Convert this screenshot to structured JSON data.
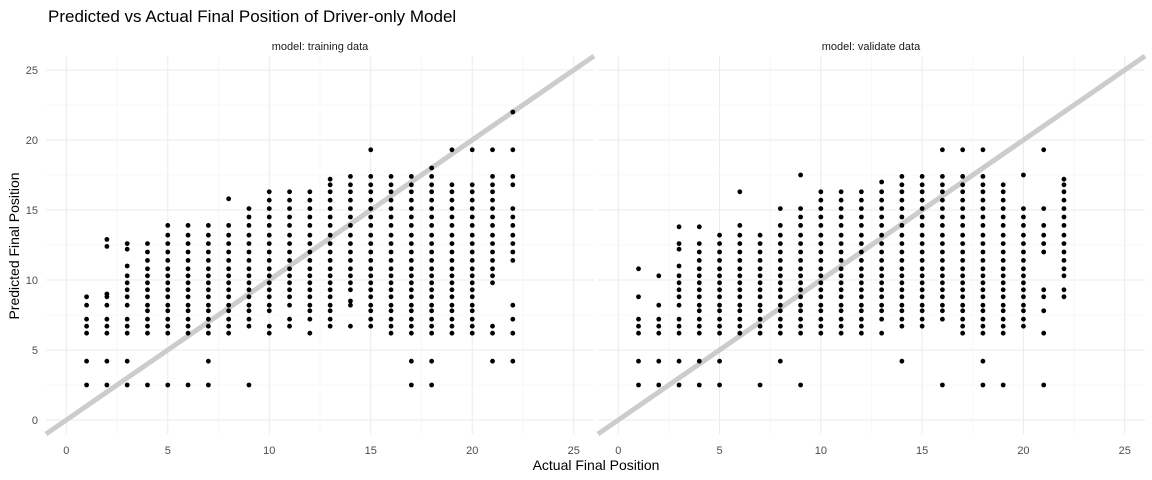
{
  "chart_data": {
    "type": "scatter",
    "title": "Predicted vs Actual Final Position of Driver-only Model",
    "xlabel": "Actual Final Position",
    "ylabel": "Predicted Final Position",
    "xlim": [
      -1,
      26
    ],
    "ylim": [
      -1,
      26
    ],
    "x_ticks": [
      0,
      5,
      10,
      15,
      20,
      25
    ],
    "y_ticks": [
      0,
      5,
      10,
      15,
      20,
      25
    ],
    "grid": true,
    "reference_line": {
      "slope": 1,
      "intercept": 0,
      "color": "#cccccc"
    },
    "point_color": "#000000",
    "panels": [
      {
        "label": "model: training data",
        "columns": [
          {
            "x": 1,
            "y": [
              2.5,
              4.2,
              6.2,
              6.7,
              7.2,
              8.2,
              8.8
            ]
          },
          {
            "x": 2,
            "y": [
              2.5,
              4.2,
              6.2,
              6.7,
              7.2,
              8.2,
              8.8,
              9.0,
              12.4,
              12.9
            ]
          },
          {
            "x": 3,
            "y": [
              2.5,
              4.2,
              6.2,
              6.7,
              7.2,
              8.2,
              8.8,
              9.3,
              9.8,
              10.3,
              11.0,
              12.2,
              12.6
            ]
          },
          {
            "x": 4,
            "y": [
              2.5,
              6.2,
              6.7,
              7.2,
              7.8,
              8.2,
              8.8,
              9.3,
              9.8,
              10.3,
              10.8,
              11.4,
              12.0,
              12.6
            ]
          },
          {
            "x": 5,
            "y": [
              2.5,
              6.2,
              6.7,
              7.2,
              7.8,
              8.2,
              8.8,
              9.3,
              9.8,
              10.3,
              10.8,
              11.4,
              12.0,
              12.6,
              13.2,
              13.9
            ]
          },
          {
            "x": 6,
            "y": [
              2.5,
              6.2,
              6.7,
              7.2,
              7.8,
              8.2,
              8.8,
              9.3,
              9.8,
              10.3,
              10.8,
              11.4,
              12.0,
              12.6,
              13.2,
              13.9
            ]
          },
          {
            "x": 7,
            "y": [
              2.5,
              4.2,
              6.2,
              6.7,
              7.2,
              7.8,
              8.2,
              8.8,
              9.3,
              9.8,
              10.3,
              10.8,
              11.4,
              12.0,
              12.6,
              13.2,
              13.9
            ]
          },
          {
            "x": 8,
            "y": [
              6.2,
              6.7,
              7.2,
              7.8,
              8.2,
              8.8,
              9.3,
              9.8,
              10.3,
              10.8,
              11.4,
              12.0,
              12.6,
              13.2,
              13.9,
              15.8
            ]
          },
          {
            "x": 9,
            "y": [
              2.5,
              6.7,
              7.2,
              7.8,
              8.2,
              8.8,
              9.3,
              9.8,
              10.3,
              10.8,
              11.4,
              12.0,
              12.6,
              13.2,
              13.9,
              14.5,
              15.1
            ]
          },
          {
            "x": 10,
            "y": [
              6.2,
              6.7,
              7.8,
              8.2,
              8.8,
              9.3,
              9.8,
              10.3,
              10.8,
              11.4,
              12.0,
              12.6,
              13.2,
              13.9,
              14.5,
              15.1,
              15.7,
              16.3
            ]
          },
          {
            "x": 11,
            "y": [
              6.7,
              7.2,
              8.2,
              8.8,
              9.3,
              9.8,
              10.3,
              10.8,
              11.4,
              12.0,
              12.6,
              13.2,
              13.9,
              14.5,
              15.1,
              15.7,
              16.3
            ]
          },
          {
            "x": 12,
            "y": [
              6.2,
              7.2,
              7.8,
              8.2,
              8.8,
              9.3,
              9.8,
              10.3,
              10.8,
              11.4,
              12.0,
              12.6,
              13.2,
              13.9,
              14.5,
              15.1,
              15.7,
              16.3
            ]
          },
          {
            "x": 13,
            "y": [
              6.7,
              7.2,
              7.8,
              8.2,
              8.8,
              9.3,
              9.8,
              10.3,
              10.8,
              11.4,
              12.0,
              12.6,
              13.2,
              13.9,
              14.5,
              15.1,
              15.7,
              16.3,
              16.8,
              17.2
            ]
          },
          {
            "x": 14,
            "y": [
              6.7,
              8.2,
              8.5,
              9.3,
              9.8,
              10.3,
              10.8,
              11.4,
              12.0,
              12.6,
              13.2,
              13.9,
              14.5,
              15.1,
              15.7,
              16.3,
              16.8,
              17.4
            ]
          },
          {
            "x": 15,
            "y": [
              6.7,
              7.2,
              7.8,
              8.2,
              8.8,
              9.3,
              9.8,
              10.3,
              10.8,
              11.4,
              12.0,
              12.6,
              13.2,
              13.9,
              14.5,
              15.1,
              15.7,
              16.3,
              16.8,
              17.4,
              19.3
            ]
          },
          {
            "x": 16,
            "y": [
              6.2,
              6.7,
              7.2,
              7.8,
              8.2,
              8.8,
              9.3,
              9.8,
              10.3,
              10.8,
              11.4,
              12.0,
              12.6,
              13.2,
              13.9,
              14.5,
              15.1,
              15.7,
              16.3,
              16.8,
              17.4
            ]
          },
          {
            "x": 17,
            "y": [
              2.5,
              4.2,
              6.2,
              6.7,
              7.2,
              7.8,
              8.2,
              8.8,
              9.3,
              9.8,
              10.3,
              10.8,
              11.4,
              12.0,
              12.6,
              13.2,
              13.9,
              14.5,
              15.1,
              15.7,
              16.3,
              16.8,
              17.4
            ]
          },
          {
            "x": 18,
            "y": [
              2.5,
              4.2,
              6.2,
              6.7,
              7.2,
              7.8,
              8.2,
              8.8,
              9.3,
              9.8,
              10.3,
              10.8,
              11.4,
              12.0,
              12.6,
              13.2,
              13.9,
              14.5,
              15.1,
              15.7,
              16.3,
              16.8,
              17.4,
              18.0
            ]
          },
          {
            "x": 19,
            "y": [
              6.2,
              6.7,
              7.2,
              7.8,
              8.2,
              8.8,
              9.3,
              9.8,
              10.3,
              10.8,
              11.4,
              12.0,
              12.6,
              13.2,
              13.9,
              14.5,
              15.1,
              15.7,
              16.3,
              16.8,
              19.3
            ]
          },
          {
            "x": 20,
            "y": [
              6.2,
              6.7,
              7.2,
              7.8,
              8.2,
              8.8,
              9.3,
              9.8,
              10.3,
              10.8,
              11.4,
              12.0,
              12.6,
              13.2,
              13.9,
              14.5,
              15.1,
              15.7,
              16.3,
              16.8,
              19.3
            ]
          },
          {
            "x": 21,
            "y": [
              4.2,
              6.2,
              6.7,
              9.8,
              10.3,
              10.8,
              11.4,
              12.0,
              12.6,
              13.2,
              13.9,
              14.5,
              15.1,
              15.7,
              16.3,
              16.8,
              17.4,
              19.3
            ]
          },
          {
            "x": 22,
            "y": [
              4.2,
              6.2,
              7.2,
              8.2,
              11.4,
              12.0,
              12.6,
              13.2,
              13.9,
              14.5,
              15.1,
              16.8,
              17.4,
              19.3,
              22.0
            ]
          }
        ]
      },
      {
        "label": "model: validate data",
        "columns": [
          {
            "x": 1,
            "y": [
              2.5,
              4.2,
              6.2,
              6.7,
              7.2,
              8.8,
              10.8
            ]
          },
          {
            "x": 2,
            "y": [
              2.5,
              4.2,
              6.2,
              6.7,
              7.2,
              8.2,
              10.3
            ]
          },
          {
            "x": 3,
            "y": [
              2.5,
              4.2,
              6.2,
              6.7,
              7.2,
              8.2,
              8.8,
              9.3,
              9.8,
              10.3,
              11.0,
              12.2,
              12.6,
              13.8
            ]
          },
          {
            "x": 4,
            "y": [
              2.5,
              4.2,
              6.2,
              6.7,
              7.2,
              7.8,
              8.2,
              8.8,
              9.3,
              9.8,
              10.3,
              10.8,
              11.4,
              12.0,
              12.6,
              13.8
            ]
          },
          {
            "x": 5,
            "y": [
              2.5,
              4.2,
              6.2,
              6.7,
              7.2,
              7.8,
              8.2,
              8.8,
              9.3,
              9.8,
              10.3,
              10.8,
              11.4,
              12.0,
              12.6,
              13.2
            ]
          },
          {
            "x": 6,
            "y": [
              6.2,
              6.7,
              7.2,
              7.8,
              8.2,
              8.8,
              9.3,
              9.8,
              10.3,
              10.8,
              11.4,
              12.0,
              12.6,
              13.2,
              13.9,
              16.3
            ]
          },
          {
            "x": 7,
            "y": [
              2.5,
              6.2,
              6.7,
              7.2,
              7.8,
              8.2,
              8.8,
              9.3,
              9.8,
              10.3,
              10.8,
              11.4,
              12.0,
              12.6,
              13.2
            ]
          },
          {
            "x": 8,
            "y": [
              4.2,
              6.2,
              6.7,
              7.2,
              7.8,
              8.2,
              8.8,
              9.3,
              9.8,
              10.3,
              10.8,
              11.4,
              12.0,
              12.6,
              13.2,
              13.9,
              15.1
            ]
          },
          {
            "x": 9,
            "y": [
              2.5,
              6.2,
              6.7,
              7.2,
              7.8,
              8.2,
              8.8,
              9.3,
              9.8,
              10.3,
              10.8,
              11.4,
              12.0,
              12.6,
              13.2,
              13.9,
              14.5,
              15.1,
              17.5
            ]
          },
          {
            "x": 10,
            "y": [
              6.2,
              6.7,
              7.2,
              7.8,
              8.2,
              8.8,
              9.3,
              9.8,
              10.3,
              10.8,
              11.4,
              12.0,
              12.6,
              13.2,
              13.9,
              14.5,
              15.1,
              15.7,
              16.3
            ]
          },
          {
            "x": 11,
            "y": [
              6.2,
              6.7,
              7.2,
              7.8,
              8.2,
              8.8,
              9.3,
              9.8,
              10.3,
              10.8,
              11.4,
              12.0,
              12.6,
              13.2,
              13.9,
              14.5,
              15.1,
              15.7,
              16.3
            ]
          },
          {
            "x": 12,
            "y": [
              6.2,
              6.7,
              7.2,
              7.8,
              8.2,
              8.8,
              9.3,
              9.8,
              10.3,
              10.8,
              11.4,
              12.0,
              12.6,
              13.2,
              13.9,
              14.5,
              15.1,
              15.7,
              16.3
            ]
          },
          {
            "x": 13,
            "y": [
              6.2,
              7.2,
              7.8,
              8.2,
              8.8,
              9.3,
              9.8,
              10.3,
              10.8,
              11.4,
              12.0,
              12.6,
              13.2,
              13.9,
              14.5,
              15.1,
              15.7,
              16.3,
              17.0
            ]
          },
          {
            "x": 14,
            "y": [
              4.2,
              6.7,
              7.2,
              7.8,
              8.2,
              8.8,
              9.3,
              9.8,
              10.3,
              10.8,
              11.4,
              12.0,
              12.6,
              13.2,
              13.9,
              14.5,
              15.1,
              15.7,
              16.3,
              16.8,
              17.4
            ]
          },
          {
            "x": 15,
            "y": [
              6.7,
              7.2,
              7.8,
              8.2,
              8.8,
              9.3,
              9.8,
              10.3,
              10.8,
              11.4,
              12.0,
              12.6,
              13.2,
              13.9,
              14.5,
              15.1,
              15.7,
              16.3,
              16.8,
              17.4
            ]
          },
          {
            "x": 16,
            "y": [
              2.5,
              7.2,
              7.8,
              8.2,
              8.8,
              9.3,
              9.8,
              10.3,
              10.8,
              11.4,
              12.0,
              12.6,
              13.2,
              13.9,
              14.5,
              15.1,
              15.7,
              16.3,
              16.8,
              17.4,
              19.3
            ]
          },
          {
            "x": 17,
            "y": [
              6.2,
              6.7,
              7.2,
              7.8,
              8.2,
              8.8,
              9.3,
              9.8,
              10.3,
              10.8,
              11.4,
              12.0,
              12.6,
              13.2,
              13.9,
              14.5,
              15.1,
              15.7,
              16.3,
              16.8,
              17.4,
              19.3
            ]
          },
          {
            "x": 18,
            "y": [
              2.5,
              4.2,
              6.2,
              6.7,
              7.2,
              7.8,
              8.2,
              8.8,
              9.3,
              9.8,
              10.3,
              10.8,
              11.4,
              12.0,
              12.6,
              13.2,
              13.9,
              14.5,
              15.1,
              15.7,
              16.3,
              16.8,
              17.4,
              19.3
            ]
          },
          {
            "x": 19,
            "y": [
              2.5,
              6.2,
              6.7,
              7.2,
              7.8,
              8.2,
              8.8,
              9.3,
              9.8,
              10.3,
              10.8,
              11.4,
              12.0,
              12.6,
              13.2,
              13.9,
              14.5,
              15.1,
              15.7,
              16.3,
              16.8
            ]
          },
          {
            "x": 20,
            "y": [
              6.7,
              7.2,
              7.8,
              8.2,
              8.8,
              9.3,
              9.8,
              10.3,
              10.8,
              11.4,
              12.0,
              12.6,
              13.2,
              13.9,
              14.5,
              15.1,
              17.5
            ]
          },
          {
            "x": 21,
            "y": [
              2.5,
              6.2,
              7.8,
              8.8,
              9.3,
              12.0,
              12.6,
              13.2,
              13.9,
              15.1,
              19.3
            ]
          },
          {
            "x": 22,
            "y": [
              8.8,
              9.3,
              10.3,
              10.8,
              11.4,
              12.0,
              12.6,
              13.2,
              13.9,
              14.5,
              15.1,
              15.7,
              16.3,
              16.8,
              17.2
            ]
          }
        ]
      }
    ]
  }
}
